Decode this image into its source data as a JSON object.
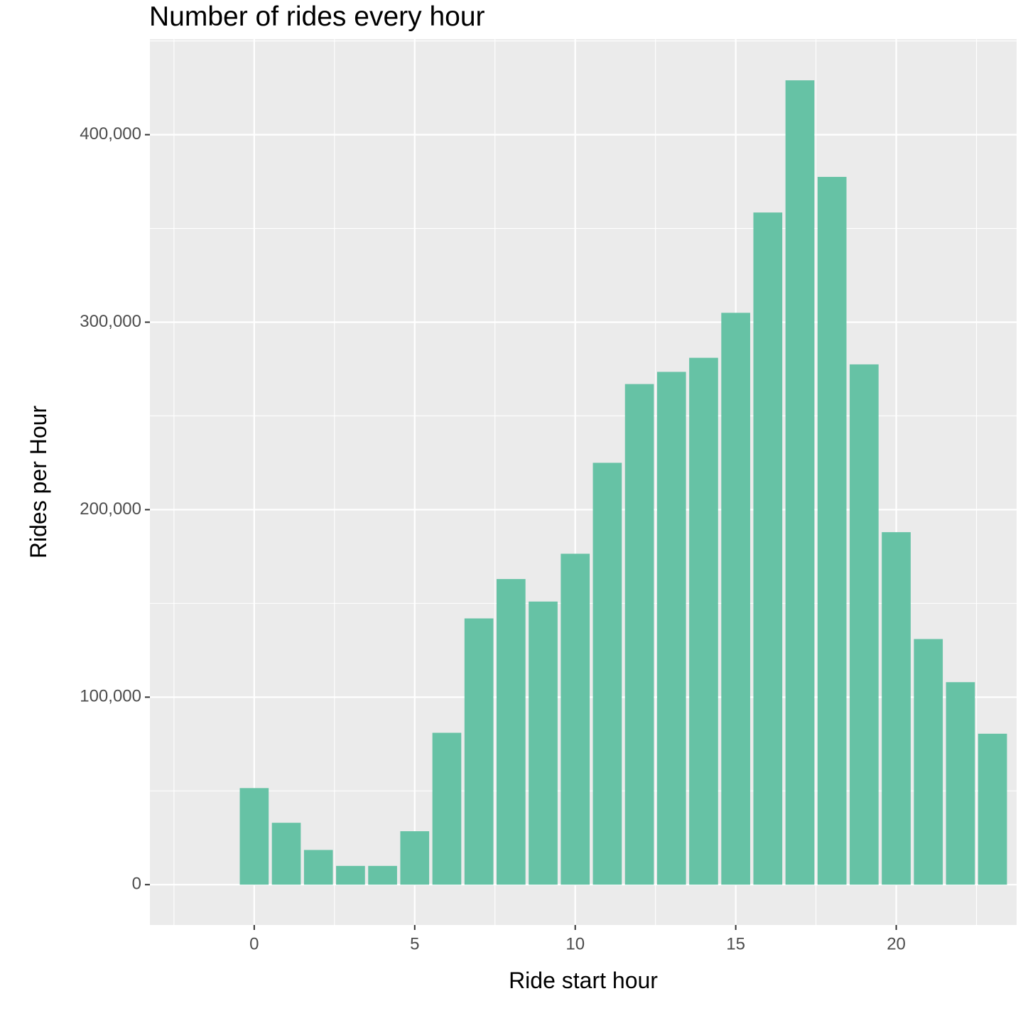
{
  "chart_data": {
    "type": "bar",
    "title": "Number of rides every hour",
    "xlabel": "Ride start hour",
    "ylabel": "Rides per Hour",
    "x": [
      0,
      1,
      2,
      3,
      4,
      5,
      6,
      7,
      8,
      9,
      10,
      11,
      12,
      13,
      14,
      15,
      16,
      17,
      18,
      19,
      20,
      21,
      22,
      23
    ],
    "values": [
      51500,
      33000,
      18500,
      10000,
      10000,
      28500,
      81000,
      142000,
      163000,
      151000,
      176500,
      225000,
      267000,
      273500,
      281000,
      305000,
      358500,
      429000,
      377500,
      277500,
      188000,
      131000,
      108000,
      80500
    ],
    "xlim": [
      -3.25,
      23.75
    ],
    "ylim": [
      -21500,
      451000
    ],
    "x_ticks": [
      0,
      5,
      10,
      15,
      20
    ],
    "x_tick_labels": [
      "0",
      "5",
      "10",
      "15",
      "20"
    ],
    "y_ticks": [
      0,
      100000,
      200000,
      300000,
      400000
    ],
    "y_tick_labels": [
      "0",
      "100,000",
      "200,000",
      "300,000",
      "400,000"
    ],
    "grid": true,
    "legend": "none",
    "colors": {
      "bar": "#66c2a5",
      "panel": "#ebebeb",
      "grid": "#ffffff"
    }
  }
}
